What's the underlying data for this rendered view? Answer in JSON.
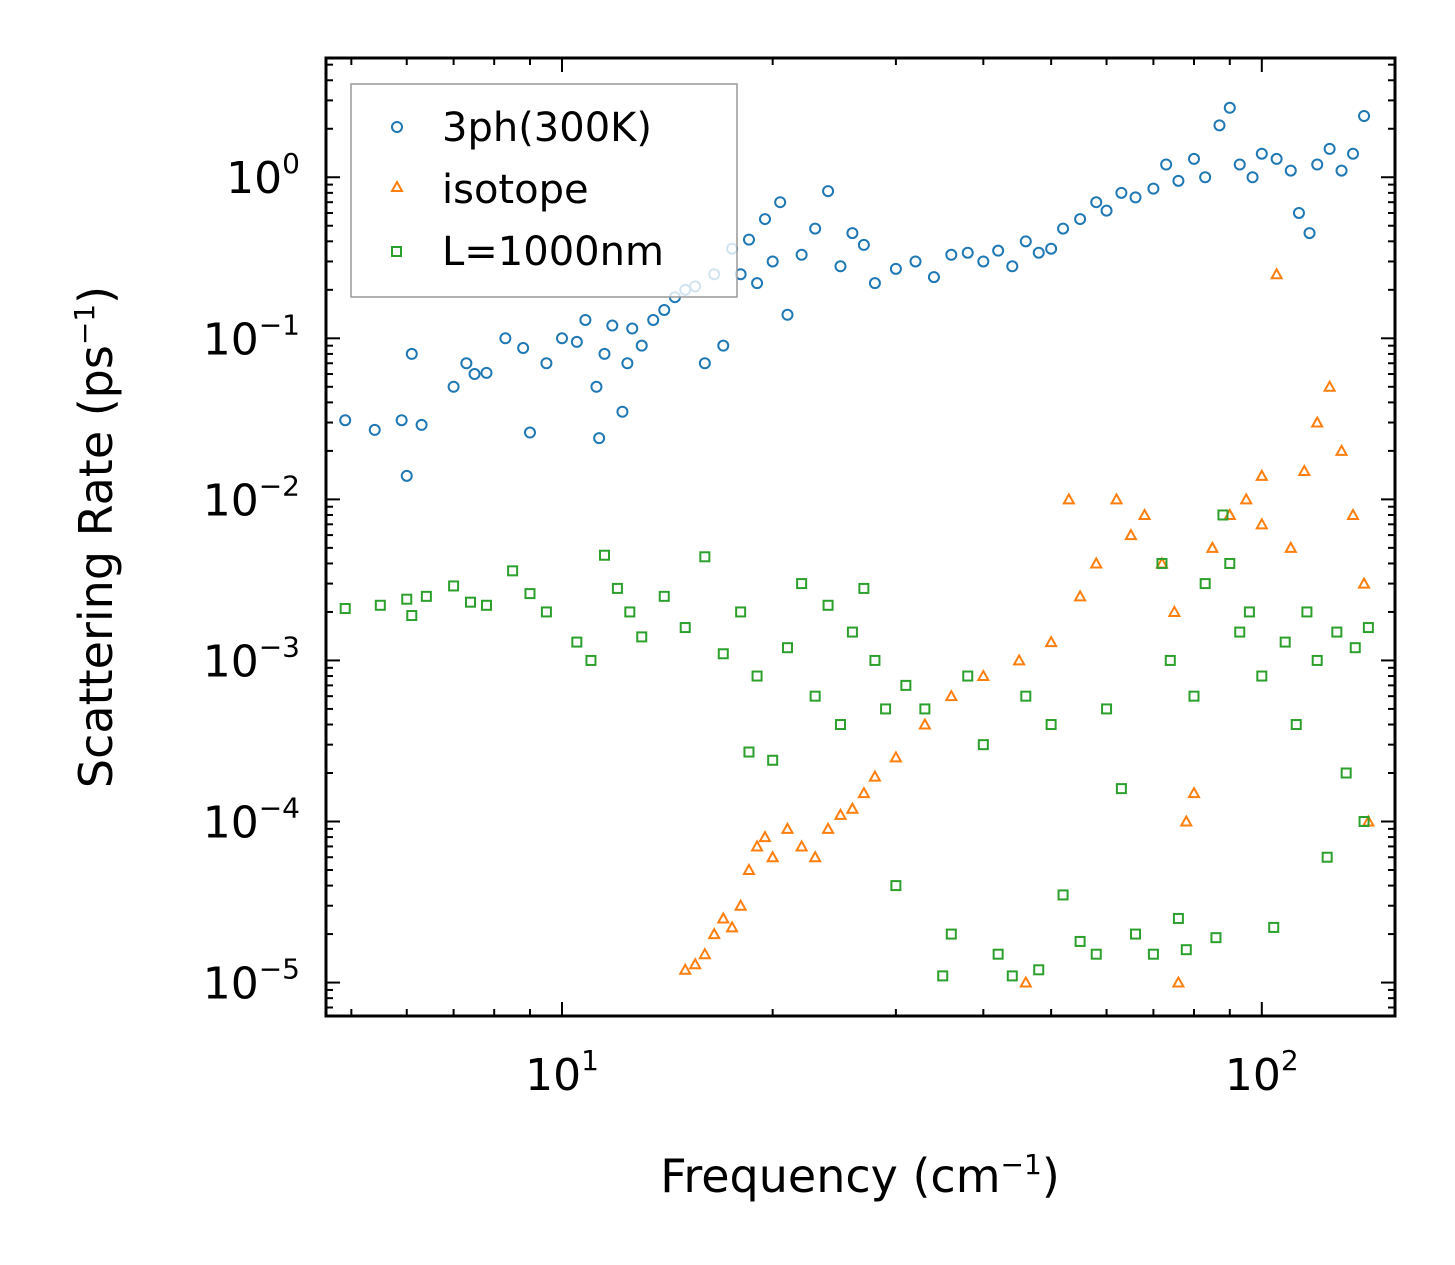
{
  "chart_data": {
    "type": "scatter",
    "xlabel": "Frequency (cm⁻¹)",
    "xlabel_base": "Frequency (cm",
    "xlabel_exp": "−1",
    "xlabel_tail": ")",
    "ylabel": "Scattering Rate (ps⁻¹)",
    "ylabel_base": "Scattering Rate (ps",
    "ylabel_exp": "−1",
    "ylabel_tail": ")",
    "xscale": "log",
    "yscale": "log",
    "xlim": [
      4.6,
      155
    ],
    "ylim": [
      6.2e-06,
      5.5
    ],
    "x_ticks": [
      {
        "value": 10,
        "base": "10",
        "exp": "1"
      },
      {
        "value": 100,
        "base": "10",
        "exp": "2"
      }
    ],
    "y_ticks": [
      {
        "value": 1,
        "base": "10",
        "exp": "0"
      },
      {
        "value": 0.1,
        "base": "10",
        "exp": "−1"
      },
      {
        "value": 0.01,
        "base": "10",
        "exp": "−2"
      },
      {
        "value": 0.001,
        "base": "10",
        "exp": "−3"
      },
      {
        "value": 0.0001,
        "base": "10",
        "exp": "−4"
      },
      {
        "value": 1e-05,
        "base": "10",
        "exp": "−5"
      }
    ],
    "legend_position": "top-left",
    "series": [
      {
        "name": "3ph(300K)",
        "marker": "circle",
        "color": "#1f77b4",
        "points": [
          [
            4.9,
            0.031
          ],
          [
            5.4,
            0.027
          ],
          [
            5.9,
            0.031
          ],
          [
            6.0,
            0.014
          ],
          [
            6.1,
            0.08
          ],
          [
            6.3,
            0.029
          ],
          [
            7.0,
            0.05
          ],
          [
            7.3,
            0.07
          ],
          [
            7.5,
            0.06
          ],
          [
            7.8,
            0.061
          ],
          [
            8.3,
            0.1
          ],
          [
            8.8,
            0.087
          ],
          [
            9.0,
            0.026
          ],
          [
            9.5,
            0.07
          ],
          [
            10.0,
            0.1
          ],
          [
            10.5,
            0.095
          ],
          [
            10.8,
            0.13
          ],
          [
            11.2,
            0.05
          ],
          [
            11.3,
            0.024
          ],
          [
            11.5,
            0.08
          ],
          [
            11.8,
            0.12
          ],
          [
            12.2,
            0.035
          ],
          [
            12.4,
            0.07
          ],
          [
            12.6,
            0.115
          ],
          [
            13.0,
            0.09
          ],
          [
            13.5,
            0.13
          ],
          [
            14.0,
            0.15
          ],
          [
            14.5,
            0.18
          ],
          [
            15.0,
            0.2
          ],
          [
            15.5,
            0.21
          ],
          [
            16.0,
            0.07
          ],
          [
            16.5,
            0.25
          ],
          [
            17.0,
            0.09
          ],
          [
            17.5,
            0.36
          ],
          [
            18.0,
            0.25
          ],
          [
            18.5,
            0.41
          ],
          [
            19.0,
            0.22
          ],
          [
            19.5,
            0.55
          ],
          [
            20.0,
            0.3
          ],
          [
            20.5,
            0.7
          ],
          [
            21.0,
            0.14
          ],
          [
            22.0,
            0.33
          ],
          [
            23.0,
            0.48
          ],
          [
            24.0,
            0.82
          ],
          [
            25.0,
            0.28
          ],
          [
            26.0,
            0.45
          ],
          [
            27.0,
            0.38
          ],
          [
            28.0,
            0.22
          ],
          [
            30.0,
            0.27
          ],
          [
            32.0,
            0.3
          ],
          [
            34.0,
            0.24
          ],
          [
            36.0,
            0.33
          ],
          [
            38.0,
            0.34
          ],
          [
            40.0,
            0.3
          ],
          [
            42.0,
            0.35
          ],
          [
            44.0,
            0.28
          ],
          [
            46.0,
            0.4
          ],
          [
            48.0,
            0.34
          ],
          [
            50.0,
            0.36
          ],
          [
            52.0,
            0.48
          ],
          [
            55.0,
            0.55
          ],
          [
            58.0,
            0.7
          ],
          [
            60.0,
            0.62
          ],
          [
            63.0,
            0.8
          ],
          [
            66.0,
            0.75
          ],
          [
            70.0,
            0.85
          ],
          [
            73.0,
            1.2
          ],
          [
            76.0,
            0.95
          ],
          [
            80.0,
            1.3
          ],
          [
            83.0,
            1.0
          ],
          [
            87.0,
            2.1
          ],
          [
            90.0,
            2.7
          ],
          [
            93.0,
            1.2
          ],
          [
            97.0,
            1.0
          ],
          [
            100.0,
            1.4
          ],
          [
            105.0,
            1.3
          ],
          [
            110.0,
            1.1
          ],
          [
            113.0,
            0.6
          ],
          [
            117.0,
            0.45
          ],
          [
            120.0,
            1.2
          ],
          [
            125.0,
            1.5
          ],
          [
            130.0,
            1.1
          ],
          [
            135.0,
            1.4
          ],
          [
            140.0,
            2.4
          ]
        ]
      },
      {
        "name": "isotope",
        "marker": "triangle",
        "color": "#ff7f0e",
        "points": [
          [
            15.0,
            1.2e-05
          ],
          [
            15.5,
            1.3e-05
          ],
          [
            16.0,
            1.5e-05
          ],
          [
            16.5,
            2e-05
          ],
          [
            17.0,
            2.5e-05
          ],
          [
            17.5,
            2.2e-05
          ],
          [
            18.0,
            3e-05
          ],
          [
            18.5,
            5e-05
          ],
          [
            19.0,
            7e-05
          ],
          [
            19.5,
            8e-05
          ],
          [
            20.0,
            6e-05
          ],
          [
            21.0,
            9e-05
          ],
          [
            22.0,
            7e-05
          ],
          [
            23.0,
            6e-05
          ],
          [
            24.0,
            9e-05
          ],
          [
            25.0,
            0.00011
          ],
          [
            26.0,
            0.00012
          ],
          [
            27.0,
            0.00015
          ],
          [
            28.0,
            0.00019
          ],
          [
            30.0,
            0.00025
          ],
          [
            33.0,
            0.0004
          ],
          [
            36.0,
            0.0006
          ],
          [
            40.0,
            0.0008
          ],
          [
            45.0,
            0.001
          ],
          [
            50.0,
            0.0013
          ],
          [
            55.0,
            0.0025
          ],
          [
            58.0,
            0.004
          ],
          [
            62.0,
            0.01
          ],
          [
            65.0,
            0.006
          ],
          [
            68.0,
            0.008
          ],
          [
            72.0,
            0.004
          ],
          [
            75.0,
            0.002
          ],
          [
            78.0,
            0.0001
          ],
          [
            80.0,
            0.00015
          ],
          [
            85.0,
            0.005
          ],
          [
            90.0,
            0.008
          ],
          [
            95.0,
            0.01
          ],
          [
            100.0,
            0.007
          ],
          [
            105.0,
            0.25
          ],
          [
            110.0,
            0.005
          ],
          [
            115.0,
            0.015
          ],
          [
            120.0,
            0.03
          ],
          [
            125.0,
            0.05
          ],
          [
            130.0,
            0.02
          ],
          [
            135.0,
            0.008
          ],
          [
            140.0,
            0.003
          ],
          [
            142.0,
            0.0001
          ],
          [
            53.0,
            0.01
          ],
          [
            100.0,
            0.014
          ],
          [
            76.0,
            1e-05
          ],
          [
            46.0,
            1e-05
          ]
        ]
      },
      {
        "name": "L=1000nm",
        "marker": "square",
        "color": "#2ca02c",
        "points": [
          [
            4.9,
            0.0021
          ],
          [
            5.5,
            0.0022
          ],
          [
            6.0,
            0.0024
          ],
          [
            6.1,
            0.0019
          ],
          [
            6.4,
            0.0025
          ],
          [
            7.0,
            0.0029
          ],
          [
            7.4,
            0.0023
          ],
          [
            7.8,
            0.0022
          ],
          [
            8.5,
            0.0036
          ],
          [
            9.0,
            0.0026
          ],
          [
            9.5,
            0.002
          ],
          [
            10.5,
            0.0013
          ],
          [
            11.0,
            0.001
          ],
          [
            11.5,
            0.0045
          ],
          [
            12.0,
            0.0028
          ],
          [
            12.5,
            0.002
          ],
          [
            13.0,
            0.0014
          ],
          [
            14.0,
            0.0025
          ],
          [
            15.0,
            0.0016
          ],
          [
            16.0,
            0.0044
          ],
          [
            17.0,
            0.0011
          ],
          [
            18.0,
            0.002
          ],
          [
            18.5,
            0.00027
          ],
          [
            19.0,
            0.0008
          ],
          [
            20.0,
            0.00024
          ],
          [
            21.0,
            0.0012
          ],
          [
            22.0,
            0.003
          ],
          [
            23.0,
            0.0006
          ],
          [
            24.0,
            0.0022
          ],
          [
            25.0,
            0.0004
          ],
          [
            26.0,
            0.0015
          ],
          [
            27.0,
            0.0028
          ],
          [
            28.0,
            0.001
          ],
          [
            29.0,
            0.0005
          ],
          [
            30.0,
            4e-05
          ],
          [
            31.0,
            0.0007
          ],
          [
            33.0,
            0.0005
          ],
          [
            35.0,
            1.1e-05
          ],
          [
            36.0,
            2e-05
          ],
          [
            38.0,
            0.0008
          ],
          [
            40.0,
            0.0003
          ],
          [
            42.0,
            1.5e-05
          ],
          [
            44.0,
            1.1e-05
          ],
          [
            46.0,
            0.0006
          ],
          [
            48.0,
            1.2e-05
          ],
          [
            50.0,
            0.0004
          ],
          [
            52.0,
            3.5e-05
          ],
          [
            55.0,
            1.8e-05
          ],
          [
            58.0,
            1.5e-05
          ],
          [
            60.0,
            0.0005
          ],
          [
            63.0,
            0.00016
          ],
          [
            66.0,
            2e-05
          ],
          [
            70.0,
            1.5e-05
          ],
          [
            72.0,
            0.004
          ],
          [
            74.0,
            0.001
          ],
          [
            76.0,
            2.5e-05
          ],
          [
            78.0,
            1.6e-05
          ],
          [
            80.0,
            0.0006
          ],
          [
            83.0,
            0.003
          ],
          [
            86.0,
            1.9e-05
          ],
          [
            88.0,
            0.008
          ],
          [
            90.0,
            0.004
          ],
          [
            93.0,
            0.0015
          ],
          [
            96.0,
            0.002
          ],
          [
            100.0,
            0.0008
          ],
          [
            104.0,
            2.2e-05
          ],
          [
            108.0,
            0.0013
          ],
          [
            112.0,
            0.0004
          ],
          [
            116.0,
            0.002
          ],
          [
            120.0,
            0.001
          ],
          [
            124.0,
            6e-05
          ],
          [
            128.0,
            0.0015
          ],
          [
            132.0,
            0.0002
          ],
          [
            136.0,
            0.0012
          ],
          [
            140.0,
            0.0001
          ],
          [
            142.0,
            0.0016
          ]
        ]
      }
    ]
  }
}
